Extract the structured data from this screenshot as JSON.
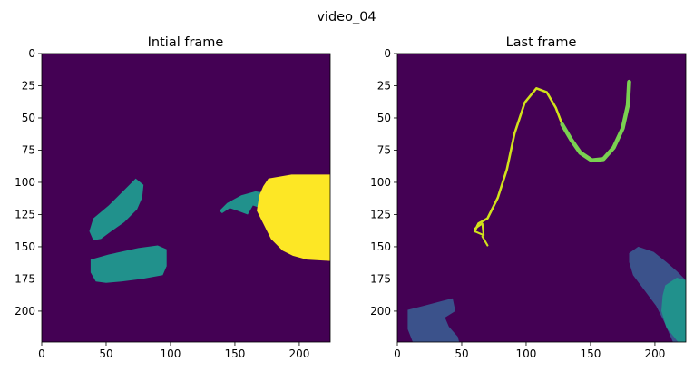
{
  "figure": {
    "suptitle": "video_04"
  },
  "chart_data": [
    {
      "type": "heatmap",
      "title": "Intial frame",
      "xlim": [
        0,
        224
      ],
      "ylim": [
        224,
        0
      ],
      "xticks": [
        "0",
        "50",
        "100",
        "150",
        "200"
      ],
      "yticks": [
        "0",
        "25",
        "50",
        "75",
        "100",
        "125",
        "150",
        "175",
        "200"
      ],
      "colormap": "viridis",
      "background_color": "#440154",
      "regions": [
        {
          "label_id": 2,
          "color": "#21918c",
          "points": [
            [
              40,
              145
            ],
            [
              37,
              138
            ],
            [
              40,
              128
            ],
            [
              52,
              118
            ],
            [
              65,
              105
            ],
            [
              73,
              97
            ],
            [
              79,
              102
            ],
            [
              78,
              112
            ],
            [
              74,
              121
            ],
            [
              64,
              131
            ],
            [
              54,
              138
            ],
            [
              46,
              144
            ]
          ]
        },
        {
          "label_id": 2,
          "color": "#21918c",
          "points": [
            [
              38,
              160
            ],
            [
              52,
              156
            ],
            [
              75,
              151
            ],
            [
              90,
              149
            ],
            [
              97,
              152
            ],
            [
              97,
              165
            ],
            [
              94,
              172
            ],
            [
              78,
              175
            ],
            [
              62,
              177
            ],
            [
              50,
              178
            ],
            [
              42,
              177
            ],
            [
              38,
              170
            ]
          ]
        },
        {
          "label_id": 2,
          "color": "#21918c",
          "points": [
            [
              138,
              122
            ],
            [
              144,
              116
            ],
            [
              155,
              110
            ],
            [
              166,
              107
            ],
            [
              172,
              108
            ],
            [
              174,
              115
            ],
            [
              170,
              120
            ],
            [
              164,
              118
            ],
            [
              160,
              125
            ],
            [
              152,
              122
            ],
            [
              146,
              120
            ],
            [
              140,
              124
            ]
          ]
        },
        {
          "label_id": 4,
          "color": "#fde725",
          "points": [
            [
              176,
              97
            ],
            [
              194,
              94
            ],
            [
              224,
              94
            ],
            [
              224,
              161
            ],
            [
              206,
              160
            ],
            [
              195,
              157
            ],
            [
              187,
              153
            ],
            [
              178,
              144
            ],
            [
              172,
              132
            ],
            [
              167,
              122
            ],
            [
              169,
              110
            ],
            [
              172,
              103
            ]
          ]
        }
      ]
    },
    {
      "type": "heatmap",
      "title": "Last frame",
      "xlim": [
        0,
        224
      ],
      "ylim": [
        224,
        0
      ],
      "xticks": [
        "0",
        "50",
        "100",
        "150",
        "200"
      ],
      "yticks": [
        "0",
        "25",
        "50",
        "75",
        "100",
        "125",
        "150",
        "175",
        "200"
      ],
      "colormap": "viridis",
      "background_color": "#440154",
      "curves": [
        {
          "label_id": 4,
          "color": "#d2e21b",
          "width_units": 1.8,
          "points": [
            [
              60,
              138
            ],
            [
              63,
              132
            ],
            [
              70,
              128
            ],
            [
              78,
              112
            ],
            [
              85,
              90
            ],
            [
              91,
              62
            ],
            [
              99,
              38
            ],
            [
              108,
              27
            ],
            [
              116,
              30
            ],
            [
              123,
              42
            ],
            [
              128,
              55
            ]
          ]
        },
        {
          "label_id": 4,
          "color": "#d2e21b",
          "width_units": 1.5,
          "points": [
            [
              60,
              138
            ],
            [
              67,
              141
            ],
            [
              66,
              132
            ],
            [
              60,
              136
            ]
          ]
        },
        {
          "label_id": 4,
          "color": "#d2e21b",
          "width_units": 1.5,
          "points": [
            [
              66,
              142
            ],
            [
              70,
              149
            ]
          ]
        },
        {
          "label_id": 3,
          "color": "#7ad151",
          "width_units": 3.2,
          "points": [
            [
              128,
              55
            ],
            [
              135,
              67
            ],
            [
              142,
              77
            ],
            [
              151,
              83
            ],
            [
              160,
              82
            ],
            [
              168,
              73
            ],
            [
              175,
              58
            ],
            [
              179,
              40
            ],
            [
              180,
              22
            ]
          ]
        }
      ],
      "regions": [
        {
          "label_id": 1,
          "color": "#3b528b",
          "points": [
            [
              180,
              155
            ],
            [
              187,
              150
            ],
            [
              199,
              154
            ],
            [
              209,
              162
            ],
            [
              217,
              169
            ],
            [
              224,
              176
            ],
            [
              224,
              224
            ],
            [
              214,
              224
            ],
            [
              207,
              208
            ],
            [
              201,
              196
            ],
            [
              192,
              184
            ],
            [
              183,
              172
            ],
            [
              180,
              162
            ]
          ]
        },
        {
          "label_id": 2,
          "color": "#21918c",
          "points": [
            [
              208,
              180
            ],
            [
              217,
              174
            ],
            [
              224,
              176
            ],
            [
              224,
              224
            ],
            [
              218,
              224
            ],
            [
              209,
              213
            ],
            [
              205,
              200
            ],
            [
              206,
              188
            ]
          ]
        },
        {
          "label_id": 1,
          "color": "#3b528b",
          "points": [
            [
              8,
              199
            ],
            [
              20,
              196
            ],
            [
              35,
              192
            ],
            [
              43,
              190
            ],
            [
              45,
              200
            ],
            [
              37,
              205
            ],
            [
              40,
              212
            ],
            [
              47,
              220
            ],
            [
              48,
              224
            ],
            [
              12,
              224
            ],
            [
              8,
              214
            ]
          ]
        }
      ]
    }
  ]
}
